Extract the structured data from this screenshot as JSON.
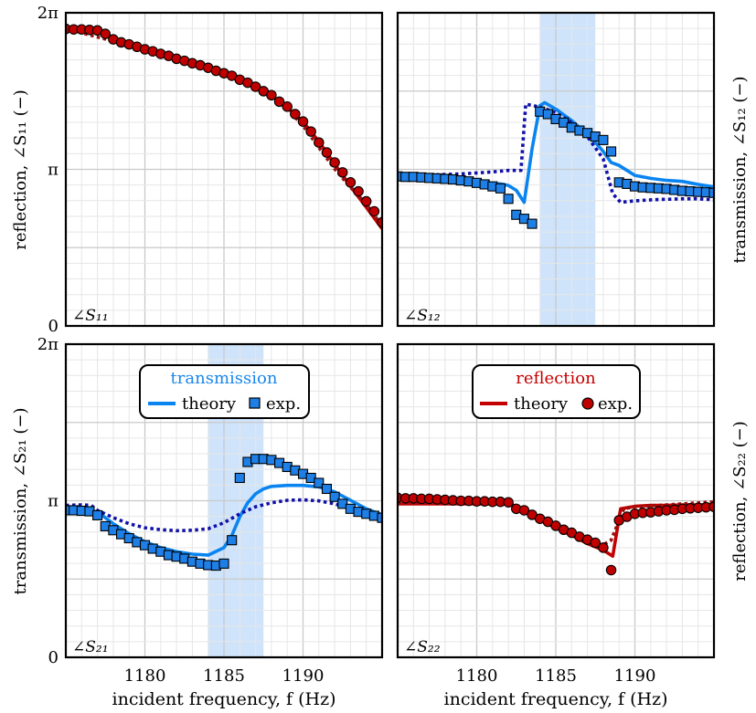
{
  "colors": {
    "theory_blue": "#0a84f0",
    "dotted_blue": "#1010a8",
    "marker_blue": "#1e7fe6",
    "theory_red": "#c40000",
    "dotted_red": "#9a1010",
    "marker_red": "#c00000",
    "shade": "#cfe4fb",
    "grid_major": "#c9c9c9",
    "grid_minor": "#e6e6e6",
    "legend_transmission_title": "#1a86ea",
    "legend_reflection_title": "#c40000"
  },
  "chart_data": [
    {
      "id": "s11",
      "type": "line",
      "corner_label": "∠S₁₁",
      "ylabel": "reflection, ∠S₁₁ (−)",
      "xlabel": "",
      "xlim": [
        1175,
        1195
      ],
      "ylim": [
        0,
        6.2832
      ],
      "y_ticks": [
        {
          "v": 0,
          "label": "0"
        },
        {
          "v": 3.1416,
          "label": "π"
        },
        {
          "v": 6.2832,
          "label": "2π"
        }
      ],
      "x_ticks": [],
      "shade": null,
      "series": [
        {
          "name": "theory",
          "style": "solid",
          "color": "#c40000",
          "x": [
            1175,
            1176,
            1177,
            1178,
            1179,
            1180,
            1181,
            1182,
            1183,
            1184,
            1185,
            1186,
            1187,
            1188,
            1189,
            1190,
            1191,
            1192,
            1193,
            1194,
            1195
          ],
          "y": [
            5.96,
            5.95,
            5.9,
            5.77,
            5.65,
            5.55,
            5.45,
            5.35,
            5.26,
            5.17,
            5.07,
            4.96,
            4.82,
            4.62,
            4.38,
            4.1,
            3.7,
            3.25,
            2.8,
            2.38,
            1.95
          ]
        },
        {
          "name": "theory-approx",
          "style": "dotted",
          "color": "#9a1010",
          "x": [
            1175,
            1180,
            1185,
            1187,
            1188,
            1189,
            1190,
            1191,
            1192,
            1193,
            1194,
            1195
          ],
          "y": [
            5.96,
            5.55,
            5.07,
            4.82,
            4.62,
            4.35,
            4.02,
            3.58,
            3.15,
            2.78,
            2.45,
            2.0
          ]
        },
        {
          "name": "exp.",
          "style": "marker",
          "marker": "circle",
          "color": "#c00000",
          "x": [
            1175,
            1175.5,
            1176,
            1176.5,
            1177,
            1177.5,
            1178,
            1178.5,
            1179,
            1179.5,
            1180,
            1180.5,
            1181,
            1181.5,
            1182,
            1182.5,
            1183,
            1183.5,
            1184,
            1184.5,
            1185,
            1185.5,
            1186,
            1186.5,
            1187,
            1187.5,
            1188,
            1188.5,
            1189,
            1189.5,
            1190,
            1190.5,
            1191,
            1191.5,
            1192,
            1192.5,
            1193,
            1193.5,
            1194,
            1194.5,
            1195
          ],
          "y": [
            5.96,
            5.95,
            5.95,
            5.94,
            5.93,
            5.86,
            5.75,
            5.69,
            5.65,
            5.6,
            5.55,
            5.51,
            5.46,
            5.42,
            5.36,
            5.32,
            5.27,
            5.23,
            5.18,
            5.12,
            5.07,
            5.02,
            4.94,
            4.88,
            4.8,
            4.71,
            4.63,
            4.5,
            4.4,
            4.25,
            4.1,
            3.9,
            3.68,
            3.48,
            3.28,
            3.08,
            2.88,
            2.7,
            2.5,
            2.3,
            2.08
          ]
        }
      ]
    },
    {
      "id": "s12",
      "type": "line",
      "corner_label": "∠S₁₂",
      "ylabel": "transmission, ∠S₁₂ (−)",
      "xlabel": "",
      "xlim": [
        1175,
        1195
      ],
      "ylim": [
        0,
        6.2832
      ],
      "y_ticks": [],
      "x_ticks": [],
      "shade": [
        1184,
        1187.5
      ],
      "series": [
        {
          "name": "theory",
          "style": "solid",
          "color": "#0a84f0",
          "x": [
            1175,
            1176,
            1177,
            1178,
            1179,
            1180,
            1181,
            1181.5,
            1182,
            1182.5,
            1183,
            1183.5,
            1184,
            1184.3,
            1185,
            1186,
            1187,
            1187.5,
            1188,
            1188.5,
            1189,
            1189.5,
            1190,
            1191,
            1192,
            1193,
            1194,
            1195
          ],
          "y": [
            2.98,
            2.97,
            2.96,
            2.94,
            2.92,
            2.9,
            2.86,
            2.85,
            2.82,
            2.72,
            2.48,
            3.55,
            4.42,
            4.48,
            4.35,
            4.12,
            3.85,
            3.68,
            3.5,
            3.28,
            3.22,
            3.12,
            3.02,
            2.96,
            2.92,
            2.9,
            2.84,
            2.79
          ]
        },
        {
          "name": "theory-approx",
          "style": "dotted",
          "color": "#1010a8",
          "x": [
            1175,
            1177,
            1179,
            1180,
            1181,
            1182,
            1182.8,
            1183.1,
            1183.6,
            1184.3,
            1185,
            1186,
            1187,
            1188,
            1188.6,
            1189.1,
            1190,
            1191,
            1192,
            1193,
            1194,
            1195
          ],
          "y": [
            3.02,
            3.03,
            3.05,
            3.07,
            3.09,
            3.12,
            3.12,
            4.45,
            4.42,
            4.36,
            4.28,
            4.08,
            3.8,
            3.35,
            2.65,
            2.48,
            2.51,
            2.53,
            2.54,
            2.55,
            2.55,
            2.53
          ]
        },
        {
          "name": "exp.",
          "style": "marker",
          "marker": "square",
          "color": "#1e7fe6",
          "x": [
            1175,
            1175.5,
            1176,
            1176.5,
            1177,
            1177.5,
            1178,
            1178.5,
            1179,
            1179.5,
            1180,
            1180.5,
            1181,
            1181.5,
            1182,
            1182.5,
            1183,
            1183.5,
            1184,
            1184.5,
            1185,
            1185.5,
            1186,
            1186.5,
            1187,
            1187.5,
            1188,
            1188.5,
            1189,
            1189.5,
            1190,
            1190.5,
            1191,
            1191.5,
            1192,
            1192.5,
            1193,
            1193.5,
            1194,
            1194.5,
            1195
          ],
          "y": [
            3.0,
            2.99,
            2.99,
            2.98,
            2.97,
            2.96,
            2.95,
            2.94,
            2.92,
            2.9,
            2.87,
            2.84,
            2.8,
            2.76,
            2.55,
            2.23,
            2.15,
            2.05,
            4.3,
            4.25,
            4.15,
            4.08,
            3.98,
            3.92,
            3.87,
            3.8,
            3.73,
            3.5,
            2.88,
            2.85,
            2.8,
            2.78,
            2.77,
            2.76,
            2.75,
            2.73,
            2.71,
            2.7,
            2.69,
            2.68,
            2.67
          ]
        }
      ]
    },
    {
      "id": "s21",
      "type": "line",
      "corner_label": "∠S₂₁",
      "ylabel": "transmission, ∠S₂₁ (−)",
      "xlabel": "incident frequency, f (Hz)",
      "xlim": [
        1175,
        1195
      ],
      "ylim": [
        0,
        6.2832
      ],
      "y_ticks": [
        {
          "v": 0,
          "label": "0"
        },
        {
          "v": 3.1416,
          "label": "π"
        },
        {
          "v": 6.2832,
          "label": "2π"
        }
      ],
      "x_ticks": [
        {
          "v": 1180,
          "label": "1180"
        },
        {
          "v": 1185,
          "label": "1185"
        },
        {
          "v": 1190,
          "label": "1190"
        }
      ],
      "shade": [
        1184,
        1187.5
      ],
      "legend": {
        "title": "transmission",
        "theory_label": "theory",
        "exp_label": "exp."
      },
      "series": [
        {
          "name": "theory",
          "style": "solid",
          "color": "#0a84f0",
          "x": [
            1175,
            1176,
            1177,
            1178,
            1179,
            1180,
            1181,
            1182,
            1183,
            1184,
            1185,
            1185.5,
            1186,
            1186.5,
            1187,
            1187.5,
            1188,
            1189,
            1190,
            1191,
            1192,
            1193,
            1194,
            1195
          ],
          "y": [
            2.95,
            2.94,
            2.92,
            2.68,
            2.48,
            2.32,
            2.2,
            2.12,
            2.07,
            2.05,
            2.2,
            2.45,
            2.82,
            3.1,
            3.28,
            3.38,
            3.43,
            3.45,
            3.45,
            3.42,
            3.32,
            3.15,
            2.98,
            2.86
          ]
        },
        {
          "name": "theory-approx",
          "style": "dotted",
          "color": "#1010a8",
          "x": [
            1175,
            1176,
            1176.6,
            1177,
            1178,
            1179,
            1180,
            1181,
            1182,
            1183,
            1184,
            1185,
            1186,
            1187,
            1188,
            1189,
            1190,
            1191,
            1192,
            1193,
            1194,
            1195
          ],
          "y": [
            3.05,
            3.06,
            3.05,
            2.95,
            2.8,
            2.68,
            2.6,
            2.56,
            2.54,
            2.55,
            2.58,
            2.7,
            2.88,
            3.02,
            3.1,
            3.15,
            3.16,
            3.14,
            3.08,
            2.98,
            2.9,
            2.82
          ]
        },
        {
          "name": "exp.",
          "style": "marker",
          "marker": "square",
          "color": "#1e7fe6",
          "x": [
            1175,
            1175.5,
            1176,
            1176.5,
            1177,
            1177.5,
            1178,
            1178.5,
            1179,
            1179.5,
            1180,
            1180.5,
            1181,
            1181.5,
            1182,
            1182.5,
            1183,
            1183.5,
            1184,
            1184.5,
            1185,
            1185.5,
            1186,
            1186.5,
            1187,
            1187.5,
            1188,
            1188.5,
            1189,
            1189.5,
            1190,
            1190.5,
            1191,
            1191.5,
            1192,
            1192.5,
            1193,
            1193.5,
            1194,
            1194.5,
            1195
          ],
          "y": [
            2.95,
            2.95,
            2.94,
            2.93,
            2.85,
            2.63,
            2.55,
            2.47,
            2.39,
            2.31,
            2.25,
            2.18,
            2.12,
            2.05,
            2.02,
            1.98,
            1.92,
            1.88,
            1.85,
            1.84,
            1.88,
            2.35,
            3.6,
            3.92,
            3.98,
            3.98,
            3.96,
            3.9,
            3.82,
            3.75,
            3.68,
            3.6,
            3.5,
            3.38,
            3.22,
            3.08,
            2.98,
            2.92,
            2.88,
            2.84,
            2.8
          ]
        }
      ]
    },
    {
      "id": "s22",
      "type": "line",
      "corner_label": "∠S₂₂",
      "ylabel": "reflection, ∠S₂₂ (−)",
      "xlabel": "incident frequency, f (Hz)",
      "xlim": [
        1175,
        1195
      ],
      "ylim": [
        0,
        6.2832
      ],
      "y_ticks": [],
      "x_ticks": [
        {
          "v": 1180,
          "label": "1180"
        },
        {
          "v": 1185,
          "label": "1185"
        },
        {
          "v": 1190,
          "label": "1190"
        }
      ],
      "shade": null,
      "legend": {
        "title": "reflection",
        "theory_label": "theory",
        "exp_label": "exp."
      },
      "series": [
        {
          "name": "theory",
          "style": "solid",
          "color": "#c40000",
          "x": [
            1175,
            1176,
            1177,
            1178,
            1179,
            1180,
            1181,
            1182,
            1183,
            1184,
            1185,
            1186,
            1187,
            1188,
            1188.6,
            1189.1,
            1190,
            1191,
            1192,
            1193,
            1194,
            1195
          ],
          "y": [
            3.08,
            3.08,
            3.08,
            3.08,
            3.08,
            3.08,
            3.08,
            3.08,
            2.93,
            2.75,
            2.6,
            2.45,
            2.28,
            2.15,
            2.03,
            2.98,
            3.03,
            3.05,
            3.05,
            3.06,
            3.06,
            3.07
          ]
        },
        {
          "name": "theory-approx",
          "style": "dotted",
          "color": "#9a1010",
          "x": [
            1175,
            1180,
            1182,
            1183,
            1184,
            1185,
            1186,
            1187,
            1187.8,
            1188.5,
            1189.3,
            1190,
            1191,
            1192,
            1193,
            1194,
            1195
          ],
          "y": [
            3.1,
            3.1,
            3.1,
            2.95,
            2.77,
            2.62,
            2.48,
            2.33,
            2.22,
            2.35,
            2.98,
            3.02,
            3.04,
            3.06,
            3.08,
            3.1,
            3.12
          ]
        },
        {
          "name": "exp.",
          "style": "marker",
          "marker": "circle",
          "color": "#c00000",
          "x": [
            1175,
            1175.5,
            1176,
            1176.5,
            1177,
            1177.5,
            1178,
            1178.5,
            1179,
            1179.5,
            1180,
            1180.5,
            1181,
            1181.5,
            1182,
            1182.5,
            1183,
            1183.5,
            1184,
            1184.5,
            1185,
            1185.5,
            1186,
            1186.5,
            1187,
            1187.5,
            1188,
            1188.5,
            1189,
            1189.5,
            1190,
            1190.5,
            1191,
            1191.5,
            1192,
            1192.5,
            1193,
            1193.5,
            1194,
            1194.5,
            1195
          ],
          "y": [
            3.2,
            3.19,
            3.19,
            3.18,
            3.18,
            3.17,
            3.16,
            3.15,
            3.14,
            3.14,
            3.13,
            3.13,
            3.12,
            3.12,
            3.11,
            2.98,
            2.95,
            2.86,
            2.78,
            2.72,
            2.64,
            2.56,
            2.5,
            2.42,
            2.36,
            2.3,
            2.2,
            1.75,
            2.75,
            2.82,
            2.88,
            2.9,
            2.91,
            2.93,
            2.95,
            2.96,
            2.98,
            2.99,
            3.0,
            3.01,
            3.02
          ]
        }
      ]
    }
  ]
}
